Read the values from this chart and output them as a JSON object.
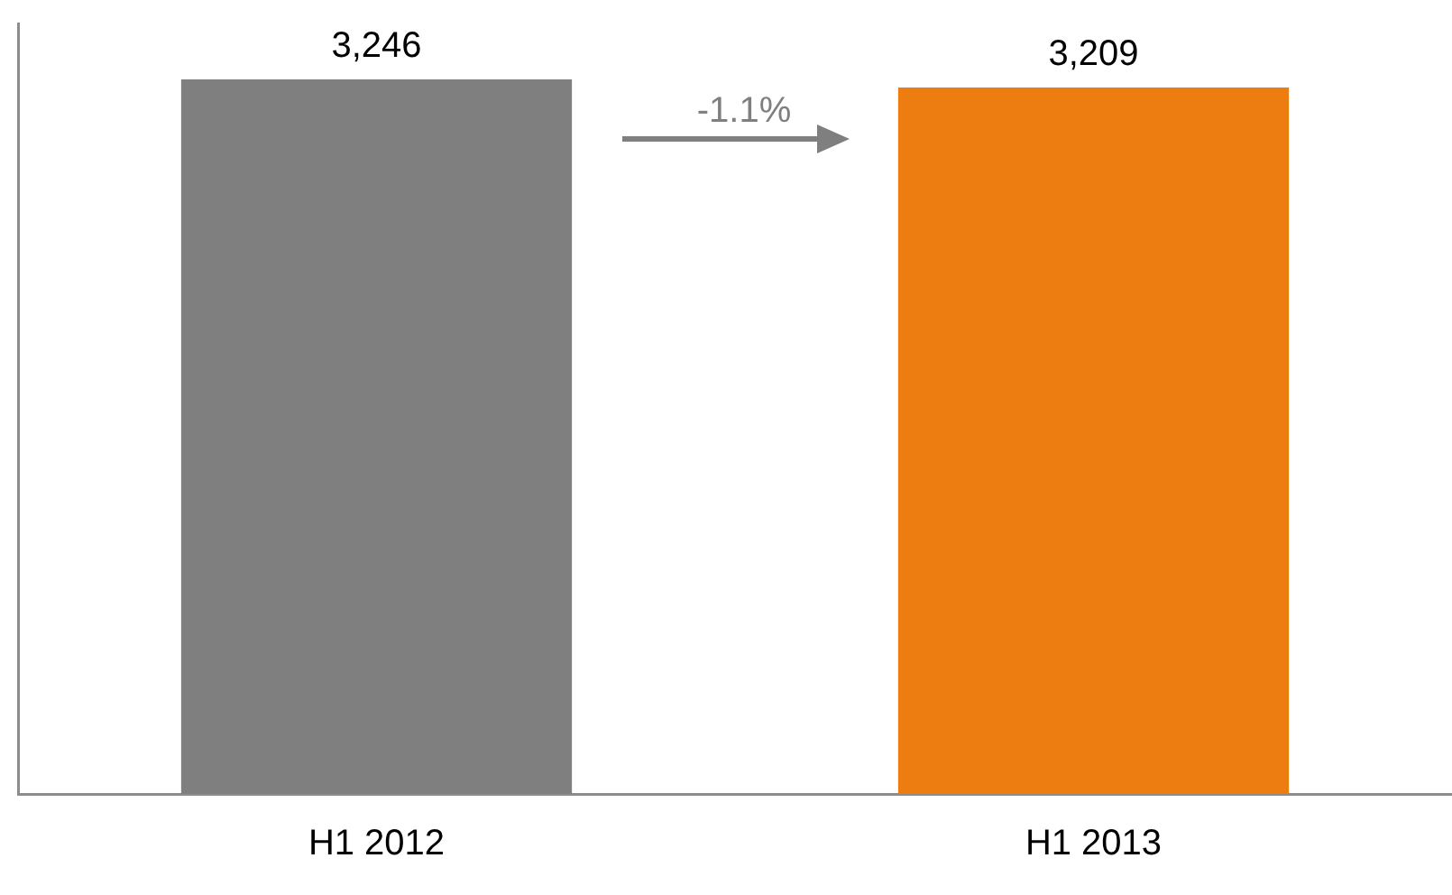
{
  "chart_data": {
    "type": "bar",
    "categories": [
      "H1 2012",
      "H1 2013"
    ],
    "values": [
      3246,
      3209
    ],
    "colors": [
      "#7f7f7f",
      "#ed7d11"
    ],
    "value_labels": [
      "3,246",
      "3,209"
    ],
    "tick_labels": "x",
    "grid": false,
    "legend": false,
    "annotations": [
      "-1.1%"
    ]
  }
}
